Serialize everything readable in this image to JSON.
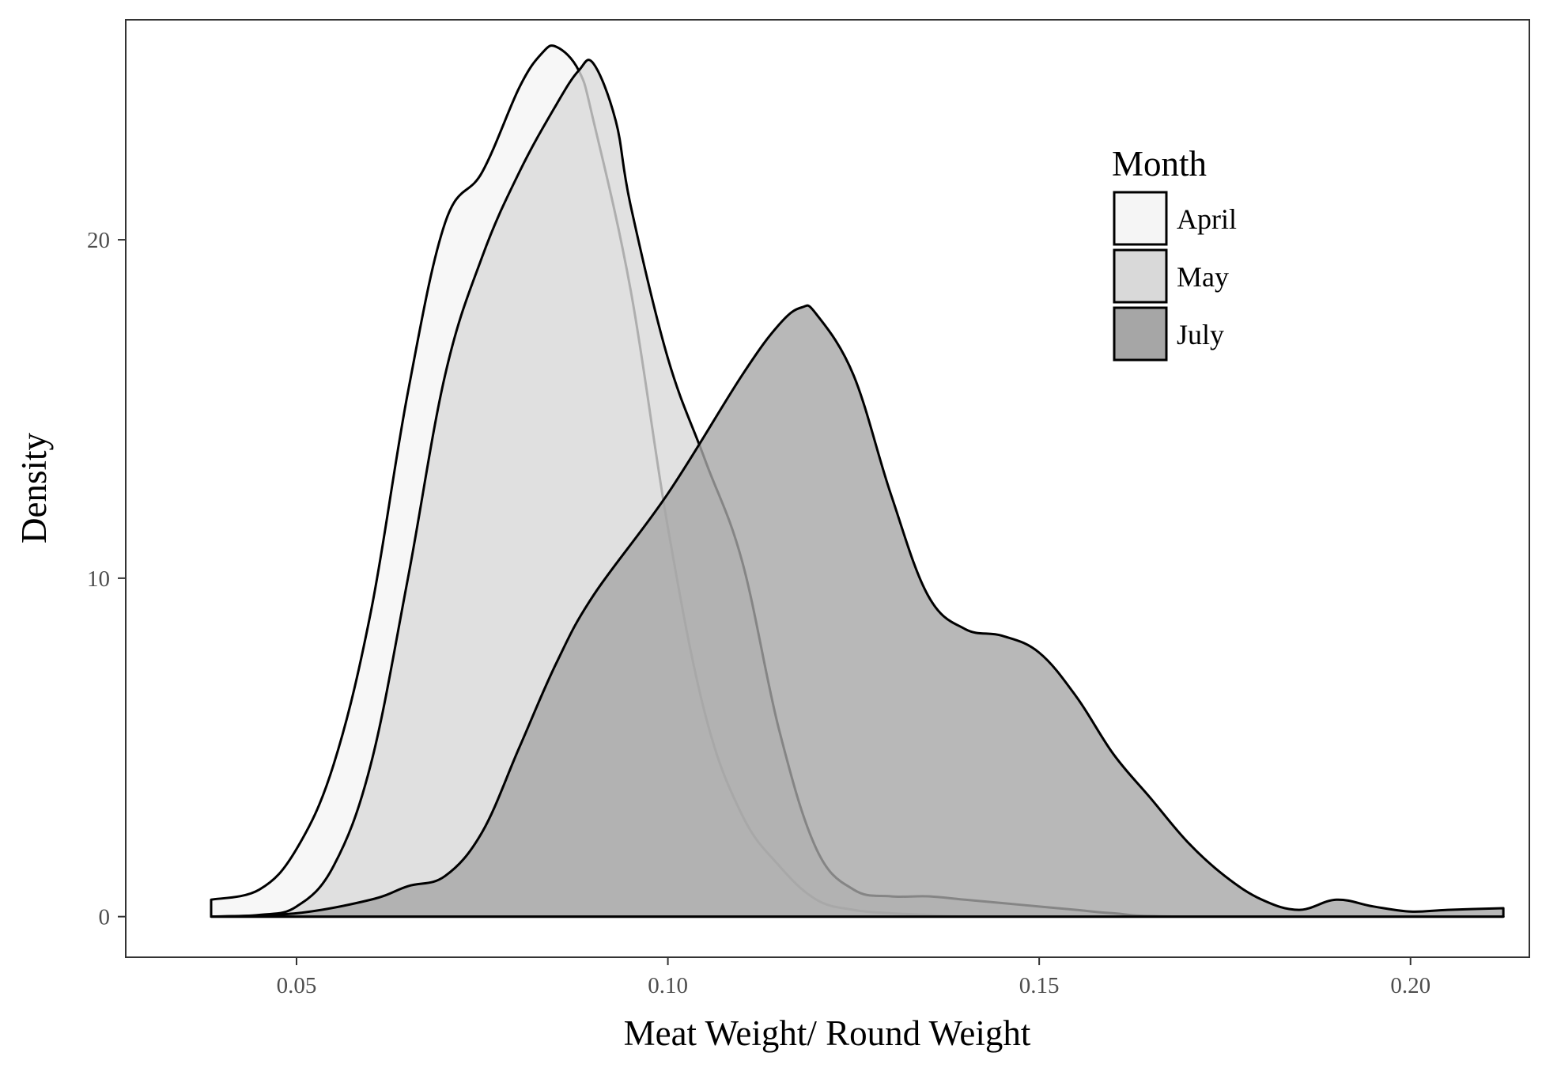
{
  "chart_data": {
    "type": "area",
    "xlabel": "Meat Weight/ Round Weight",
    "ylabel": "Density",
    "xlim": [
      0.027,
      0.216
    ],
    "ylim": [
      -1.2,
      26.5
    ],
    "x_ticks": [
      0.05,
      0.1,
      0.15,
      0.2
    ],
    "x_tick_labels": [
      "0.05",
      "0.10",
      "0.15",
      "0.20"
    ],
    "y_ticks": [
      0,
      10,
      20
    ],
    "y_tick_labels": [
      "0",
      "10",
      "20"
    ],
    "grid": false,
    "legend": {
      "title": "Month",
      "position": "top-right",
      "entries": [
        "April",
        "May",
        "July"
      ]
    },
    "series": [
      {
        "name": "April",
        "color": "#f5f5f5",
        "x": [
          0.0385,
          0.045,
          0.05,
          0.055,
          0.06,
          0.065,
          0.07,
          0.075,
          0.08,
          0.083,
          0.085,
          0.088,
          0.09,
          0.095,
          0.1,
          0.105,
          0.11,
          0.115,
          0.12,
          0.125,
          0.13,
          0.135,
          0.14,
          0.15,
          0.16,
          0.2125
        ],
        "y": [
          0.5,
          0.8,
          2.0,
          4.5,
          9.0,
          15.5,
          20.5,
          22.0,
          24.5,
          25.5,
          25.7,
          25.0,
          23.5,
          18.5,
          11.5,
          6.0,
          3.0,
          1.5,
          0.5,
          0.2,
          0.1,
          0.05,
          0.0,
          0.0,
          0.0,
          0.0
        ]
      },
      {
        "name": "May",
        "color": "#d9d9d9",
        "x": [
          0.0385,
          0.045,
          0.05,
          0.055,
          0.06,
          0.065,
          0.07,
          0.075,
          0.08,
          0.085,
          0.088,
          0.09,
          0.093,
          0.095,
          0.1,
          0.105,
          0.11,
          0.115,
          0.12,
          0.125,
          0.13,
          0.135,
          0.14,
          0.145,
          0.15,
          0.155,
          0.16,
          0.17,
          0.2125
        ],
        "y": [
          0.0,
          0.05,
          0.3,
          1.5,
          4.5,
          10.0,
          16.0,
          19.5,
          22.0,
          24.0,
          25.0,
          25.2,
          23.5,
          21.0,
          16.5,
          13.5,
          10.5,
          5.5,
          2.0,
          0.8,
          0.6,
          0.6,
          0.5,
          0.4,
          0.3,
          0.2,
          0.1,
          0.0,
          0.0
        ]
      },
      {
        "name": "July",
        "color": "#a6a6a6",
        "x": [
          0.0385,
          0.05,
          0.06,
          0.065,
          0.07,
          0.075,
          0.08,
          0.085,
          0.09,
          0.1,
          0.11,
          0.115,
          0.118,
          0.12,
          0.125,
          0.13,
          0.135,
          0.14,
          0.145,
          0.15,
          0.155,
          0.16,
          0.165,
          0.17,
          0.175,
          0.18,
          0.185,
          0.19,
          0.195,
          0.2,
          0.205,
          0.2125
        ],
        "y": [
          0.0,
          0.1,
          0.5,
          0.9,
          1.2,
          2.5,
          5.0,
          7.5,
          9.5,
          12.5,
          16.0,
          17.5,
          18.0,
          17.8,
          16.0,
          12.5,
          9.5,
          8.5,
          8.3,
          7.8,
          6.5,
          4.8,
          3.5,
          2.2,
          1.2,
          0.5,
          0.2,
          0.5,
          0.3,
          0.15,
          0.2,
          0.25
        ]
      }
    ]
  }
}
